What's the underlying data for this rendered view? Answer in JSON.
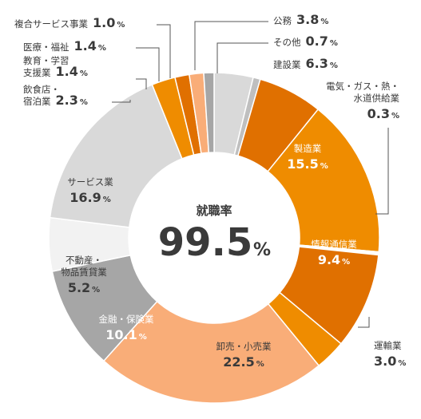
{
  "chart_data": {
    "type": "pie",
    "title": "就職率",
    "total_label": "99.5",
    "total_unit": "%",
    "unit": "%",
    "slices": [
      {
        "label": "公務",
        "value": 3.8,
        "display": "3.8",
        "color": "#d9d9d9"
      },
      {
        "label": "その他",
        "value": 0.7,
        "display": "0.7",
        "color": "#bfbfbf"
      },
      {
        "label": "建設業",
        "value": 6.3,
        "display": "6.3",
        "color": "#e07000"
      },
      {
        "label": "製造業",
        "value": 15.5,
        "display": "15.5",
        "color": "#ef8c00"
      },
      {
        "label": "電気・ガス・熱・水道供給業",
        "value": 0.3,
        "display": "0.3",
        "color": "#ffffff"
      },
      {
        "label": "情報通信業",
        "value": 9.4,
        "display": "9.4",
        "color": "#e07000"
      },
      {
        "label": "運輸業",
        "value": 3.0,
        "display": "3.0",
        "color": "#ef8c00"
      },
      {
        "label": "卸売・小売業",
        "value": 22.5,
        "display": "22.5",
        "color": "#f9ad78"
      },
      {
        "label": "金融・保険業",
        "value": 10.1,
        "display": "10.1",
        "color": "#a6a6a6"
      },
      {
        "label": "不動産・物品賃貸業",
        "value": 5.2,
        "display": "5.2",
        "color": "#f2f2f2"
      },
      {
        "label": "サービス業",
        "value": 16.9,
        "display": "16.9",
        "color": "#d9d9d9"
      },
      {
        "label": "飲食店・宿泊業",
        "value": 2.3,
        "display": "2.3",
        "color": "#ef8c00"
      },
      {
        "label": "教育・学習支援業",
        "value": 1.4,
        "display": "1.4",
        "color": "#e07000"
      },
      {
        "label": "医療・福祉",
        "value": 1.4,
        "display": "1.4",
        "color": "#f9ad78"
      },
      {
        "label": "複合サービス事業",
        "value": 1.0,
        "display": "1.0",
        "color": "#a6a6a6"
      }
    ],
    "slice_labels": [
      {
        "lines": [
          "製造業"
        ],
        "pct": "15.5"
      },
      {
        "lines": [
          "情報通信業"
        ],
        "pct": "9.4"
      },
      {
        "lines": [
          "卸売・小売業"
        ],
        "pct": "22.5"
      },
      {
        "lines": [
          "金融・保険業"
        ],
        "pct": "10.1"
      },
      {
        "lines": [
          "不動産・",
          "物品賃貸業"
        ],
        "pct": "5.2"
      },
      {
        "lines": [
          "サービス業"
        ],
        "pct": "16.9"
      }
    ],
    "callouts": [
      {
        "lines": [
          "複合サービス事業"
        ],
        "pct": "1.0"
      },
      {
        "lines": [
          "医療・福祉"
        ],
        "pct": "1.4"
      },
      {
        "lines": [
          "教育・学習",
          "支援業"
        ],
        "pct": "1.4"
      },
      {
        "lines": [
          "飲食店・",
          "宿泊業"
        ],
        "pct": "2.3"
      },
      {
        "lines": [
          "公務"
        ],
        "pct": "3.8"
      },
      {
        "lines": [
          "その他"
        ],
        "pct": "0.7"
      },
      {
        "lines": [
          "建設業"
        ],
        "pct": "6.3"
      },
      {
        "lines": [
          "電気・ガス・熱・",
          "水道供給業"
        ],
        "pct": "0.3"
      },
      {
        "lines": [
          "運輸業"
        ],
        "pct": "3.0"
      }
    ]
  }
}
